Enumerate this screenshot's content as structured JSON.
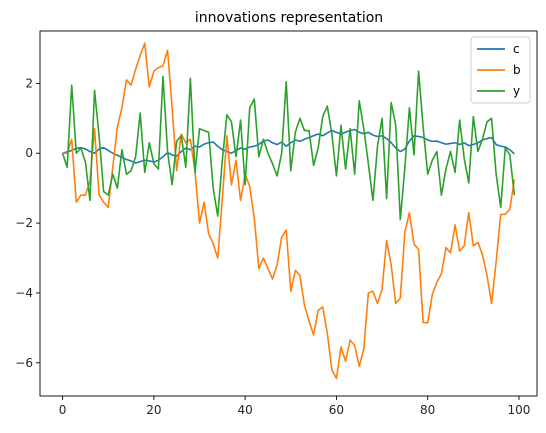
{
  "chart_data": {
    "type": "line",
    "title": "innovations representation",
    "xlabel": "",
    "ylabel": "",
    "xlim": [
      -4.95,
      103.95
    ],
    "ylim": [
      -6.95,
      3.5
    ],
    "x_ticks": [
      0,
      20,
      40,
      60,
      80,
      100
    ],
    "y_ticks": [
      -6,
      -4,
      -2,
      0,
      2
    ],
    "x_tick_labels": [
      "0",
      "20",
      "40",
      "60",
      "80",
      "100"
    ],
    "y_tick_labels": [
      "−6",
      "−4",
      "−2",
      "0",
      "2"
    ],
    "grid": false,
    "legend_position": "top-right",
    "x": [
      0,
      1,
      2,
      3,
      4,
      5,
      6,
      7,
      8,
      9,
      10,
      11,
      12,
      13,
      14,
      15,
      16,
      17,
      18,
      19,
      20,
      21,
      22,
      23,
      24,
      25,
      26,
      27,
      28,
      29,
      30,
      31,
      32,
      33,
      34,
      35,
      36,
      37,
      38,
      39,
      40,
      41,
      42,
      43,
      44,
      45,
      46,
      47,
      48,
      49,
      50,
      51,
      52,
      53,
      54,
      55,
      56,
      57,
      58,
      59,
      60,
      61,
      62,
      63,
      64,
      65,
      66,
      67,
      68,
      69,
      70,
      71,
      72,
      73,
      74,
      75,
      76,
      77,
      78,
      79,
      80,
      81,
      82,
      83,
      84,
      85,
      86,
      87,
      88,
      89,
      90,
      91,
      92,
      93,
      94,
      95,
      96,
      97,
      98,
      99
    ],
    "series": [
      {
        "name": "c",
        "color": "#1f77b4",
        "values": [
          0.0,
          0.04,
          0.08,
          0.14,
          0.16,
          0.12,
          0.05,
          0.0,
          0.12,
          0.16,
          0.08,
          0.0,
          -0.06,
          -0.12,
          -0.18,
          -0.22,
          -0.28,
          -0.24,
          -0.2,
          -0.22,
          -0.25,
          -0.2,
          -0.1,
          0.02,
          -0.05,
          -0.08,
          0.05,
          0.15,
          0.1,
          0.2,
          0.18,
          0.26,
          0.3,
          0.32,
          0.2,
          0.1,
          0.05,
          0.0,
          0.08,
          0.15,
          0.12,
          0.18,
          0.2,
          0.25,
          0.35,
          0.38,
          0.3,
          0.25,
          0.32,
          0.2,
          0.3,
          0.38,
          0.34,
          0.4,
          0.45,
          0.5,
          0.55,
          0.5,
          0.58,
          0.65,
          0.6,
          0.55,
          0.6,
          0.65,
          0.68,
          0.6,
          0.56,
          0.6,
          0.52,
          0.48,
          0.5,
          0.42,
          0.3,
          0.15,
          0.05,
          0.12,
          0.35,
          0.5,
          0.48,
          0.45,
          0.38,
          0.34,
          0.35,
          0.3,
          0.26,
          0.28,
          0.3,
          0.25,
          0.3,
          0.22,
          0.25,
          0.3,
          0.38,
          0.42,
          0.45,
          0.25,
          0.2,
          0.18,
          0.1,
          -0.02
        ]
      },
      {
        "name": "b",
        "color": "#ff7f0e",
        "values": [
          0.0,
          0.0,
          0.4,
          -1.4,
          -1.2,
          -1.2,
          -0.8,
          0.7,
          -1.2,
          -1.4,
          -1.55,
          -0.4,
          0.75,
          1.3,
          2.1,
          1.95,
          2.4,
          2.8,
          3.15,
          1.9,
          2.35,
          2.45,
          2.5,
          2.95,
          1.3,
          -0.5,
          0.55,
          0.3,
          0.4,
          -0.5,
          -2.0,
          -1.4,
          -2.3,
          -2.6,
          -3.0,
          -1.3,
          0.5,
          -0.9,
          -0.2,
          -1.35,
          -0.6,
          -0.95,
          -1.85,
          -3.3,
          -3.0,
          -3.3,
          -3.6,
          -3.2,
          -2.4,
          -2.2,
          -3.95,
          -3.35,
          -3.5,
          -4.35,
          -4.8,
          -5.2,
          -4.5,
          -4.4,
          -5.15,
          -6.2,
          -6.45,
          -5.55,
          -5.95,
          -5.35,
          -5.5,
          -6.1,
          -5.6,
          -4.0,
          -3.95,
          -4.3,
          -3.9,
          -2.5,
          -3.2,
          -4.3,
          -4.15,
          -2.25,
          -1.7,
          -2.6,
          -2.75,
          -4.85,
          -4.85,
          -4.05,
          -3.7,
          -3.45,
          -2.7,
          -2.85,
          -2.05,
          -2.8,
          -2.65,
          -1.7,
          -2.65,
          -2.55,
          -2.9,
          -3.5,
          -4.3,
          -3.1,
          -1.75,
          -1.75,
          -1.6,
          -0.75
        ]
      },
      {
        "name": "y",
        "color": "#2ca02c",
        "values": [
          0.0,
          -0.4,
          1.95,
          0.0,
          0.15,
          -0.25,
          -1.35,
          1.8,
          0.5,
          -1.1,
          -1.2,
          -0.6,
          -1.0,
          0.1,
          -0.6,
          -0.5,
          -0.1,
          1.15,
          -0.55,
          0.3,
          -0.3,
          -0.45,
          2.2,
          0.05,
          -0.9,
          0.35,
          0.5,
          -0.4,
          2.15,
          -0.55,
          0.7,
          0.65,
          0.6,
          -1.0,
          -1.8,
          -0.2,
          1.1,
          0.9,
          -0.1,
          0.95,
          -0.9,
          1.3,
          1.55,
          -0.1,
          0.4,
          0.0,
          -0.3,
          -0.65,
          0.0,
          2.05,
          -0.5,
          0.6,
          1.0,
          0.65,
          0.65,
          -0.35,
          0.15,
          1.05,
          1.35,
          0.55,
          -0.65,
          0.8,
          -0.45,
          0.7,
          -0.6,
          1.5,
          0.7,
          -0.3,
          -1.35,
          0.2,
          1.0,
          -1.3,
          1.45,
          0.8,
          -1.9,
          -0.4,
          1.3,
          -0.05,
          2.35,
          0.75,
          -0.6,
          -0.2,
          0.05,
          -1.2,
          -0.45,
          0.05,
          -0.55,
          0.95,
          -0.15,
          -0.85,
          1.05,
          0.05,
          0.4,
          0.9,
          1.0,
          -0.6,
          -1.55,
          0.15,
          -0.05,
          -1.2
        ]
      }
    ]
  }
}
